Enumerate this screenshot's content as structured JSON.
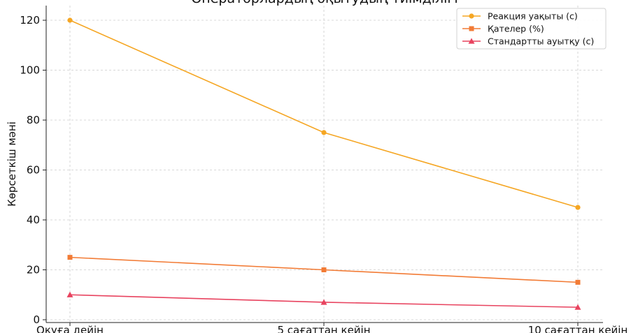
{
  "chart_data": {
    "type": "line",
    "title": "Операторлардың оқытудың тиімділігі",
    "xlabel": "",
    "ylabel": "Көрсеткіш мәні",
    "categories": [
      "Оқуға дейін",
      "5 сағаттан кейін",
      "10 сағаттан кейін"
    ],
    "ylim": [
      0,
      125
    ],
    "yticks": [
      0,
      20,
      40,
      60,
      80,
      100,
      120
    ],
    "grid": true,
    "legend_position": "top-right",
    "series": [
      {
        "name": "Реакция уақыты (с)",
        "values": [
          120,
          75,
          45
        ],
        "color": "#f5a623",
        "marker": "circle"
      },
      {
        "name": "Қателер (%)",
        "values": [
          25,
          20,
          15
        ],
        "color": "#f27b35",
        "marker": "square"
      },
      {
        "name": "Стандартты ауытқу (с)",
        "values": [
          10,
          7,
          5
        ],
        "color": "#e8435f",
        "marker": "triangle"
      }
    ]
  }
}
